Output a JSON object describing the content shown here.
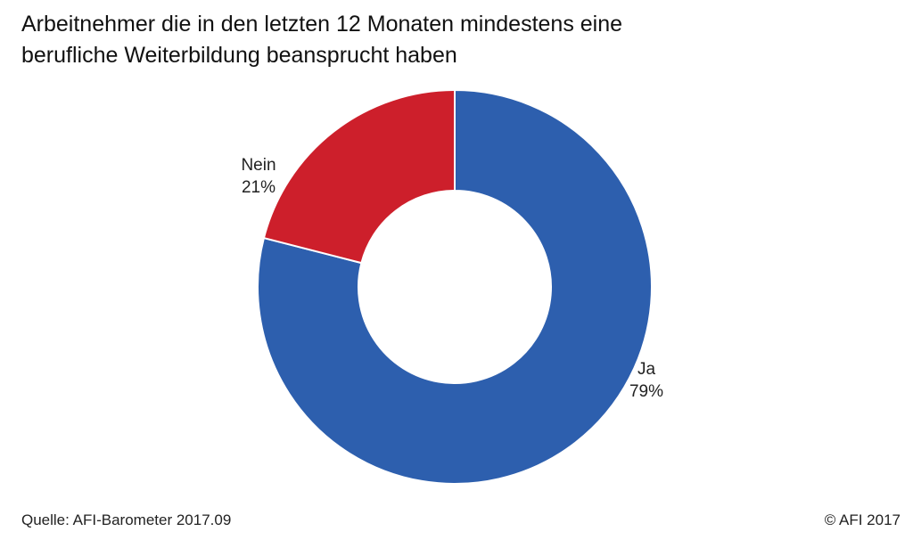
{
  "title": "Arbeitnehmer die in den letzten 12 Monaten mindestens eine\nberufliche Weiterbildung beansprucht haben",
  "source": "Quelle: AFI-Barometer 2017.09",
  "copyright": "© AFI 2017",
  "chart_data": {
    "type": "pie",
    "variant": "donut",
    "title": "Arbeitnehmer die in den letzten 12 Monaten mindestens eine berufliche Weiterbildung beansprucht haben",
    "slices": [
      {
        "label": "Ja",
        "value": 79,
        "display": "79%",
        "color": "#2d5fae"
      },
      {
        "label": "Nein",
        "value": 21,
        "display": "21%",
        "color": "#cd1f2b"
      }
    ],
    "start": "12 o'clock",
    "direction": "clockwise",
    "legend": "none"
  }
}
